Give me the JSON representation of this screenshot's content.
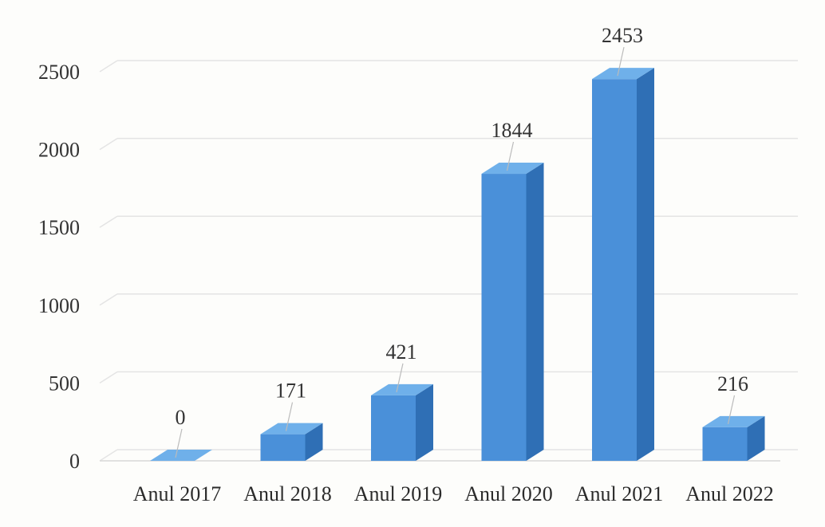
{
  "chart_data": {
    "type": "bar",
    "categories": [
      "Anul 2017",
      "Anul 2018",
      "Anul 2019",
      "Anul 2020",
      "Anul 2021",
      "Anul 2022"
    ],
    "values": [
      0,
      171,
      421,
      1844,
      2453,
      216
    ],
    "title": "",
    "xlabel": "",
    "ylabel": "",
    "ylim": [
      0,
      2500
    ],
    "yticks": [
      0,
      500,
      1000,
      1500,
      2000,
      2500
    ],
    "grid": true,
    "three_d": true,
    "bar_color": "#4a90d9",
    "bar_side_color": "#2f6fb5",
    "bar_top_color": "#6fb0ea"
  }
}
